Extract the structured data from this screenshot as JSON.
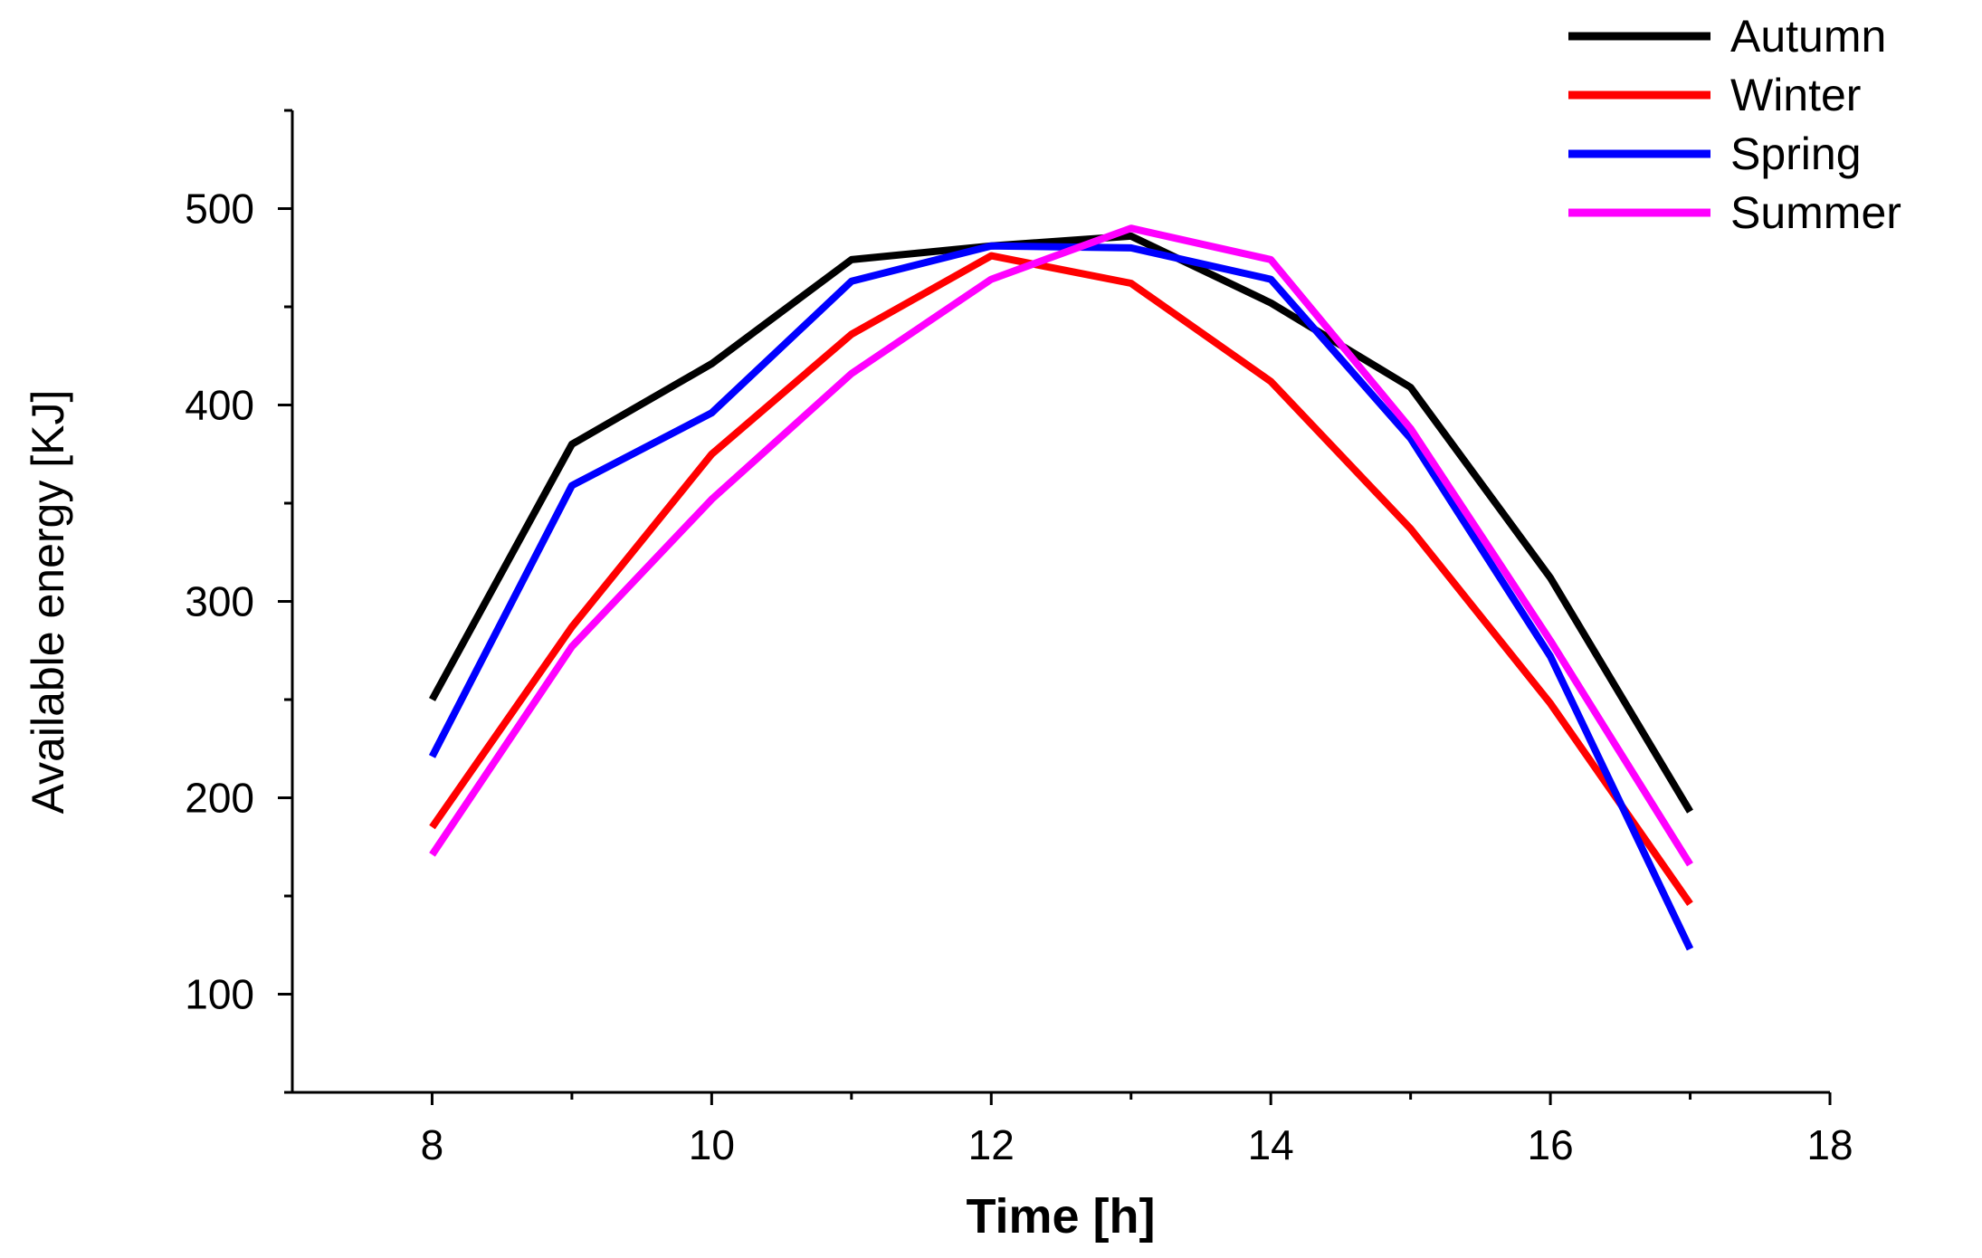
{
  "chart_data": {
    "type": "line",
    "xlabel": "Time [h]",
    "ylabel": "Available energy [KJ]",
    "xlim": [
      7,
      18
    ],
    "ylim": [
      50,
      550
    ],
    "x_ticks": [
      8,
      10,
      12,
      14,
      16,
      18
    ],
    "y_ticks": [
      100,
      200,
      300,
      400,
      500
    ],
    "x_minor_ticks": [
      9,
      11,
      13,
      15,
      17
    ],
    "y_minor_ticks": [
      50,
      150,
      250,
      350,
      450,
      550
    ],
    "grid": false,
    "legend_position": "top-right",
    "x": [
      8,
      9,
      10,
      11,
      12,
      13,
      14,
      15,
      16,
      17
    ],
    "series": [
      {
        "name": "Autumn",
        "color": "#000000",
        "values": [
          250,
          380,
          421,
          474,
          481,
          486,
          452,
          409,
          312,
          193
        ]
      },
      {
        "name": "Winter",
        "color": "#ff0000",
        "values": [
          185,
          287,
          375,
          436,
          476,
          462,
          412,
          337,
          248,
          146
        ]
      },
      {
        "name": "Spring",
        "color": "#0000ff",
        "values": [
          221,
          359,
          396,
          463,
          481,
          480,
          464,
          383,
          272,
          123
        ]
      },
      {
        "name": "Summer",
        "color": "#ff00ff",
        "values": [
          171,
          277,
          352,
          416,
          464,
          490,
          474,
          388,
          280,
          166
        ]
      }
    ]
  }
}
